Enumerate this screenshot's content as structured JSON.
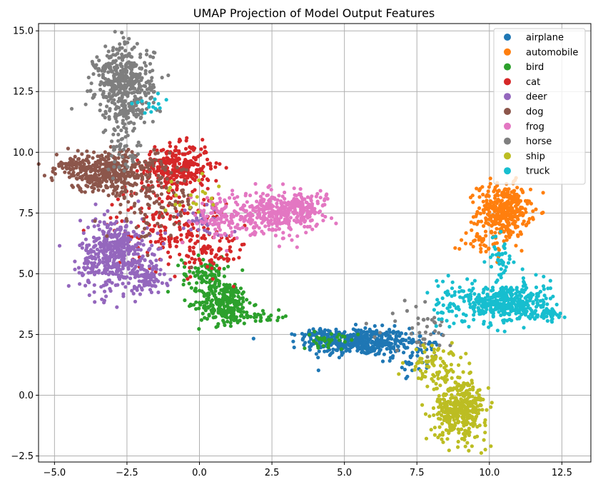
{
  "chart_data": {
    "type": "scatter",
    "title": "UMAP Projection of Model Output Features",
    "xlabel": "",
    "ylabel": "",
    "xlim": [
      -5.55,
      13.5
    ],
    "ylim": [
      -2.75,
      15.3
    ],
    "xticks": [
      -5.0,
      -2.5,
      0.0,
      2.5,
      5.0,
      7.5,
      10.0,
      12.5
    ],
    "xtick_labels": [
      "−5.0",
      "−2.5",
      "0.0",
      "2.5",
      "5.0",
      "7.5",
      "10.0",
      "12.5"
    ],
    "yticks": [
      -2.5,
      0.0,
      2.5,
      5.0,
      7.5,
      10.0,
      12.5,
      15.0
    ],
    "ytick_labels": [
      "−2.5",
      "0.0",
      "2.5",
      "5.0",
      "7.5",
      "10.0",
      "12.5",
      "15.0"
    ],
    "grid": true,
    "legend_position": "top-right",
    "series": [
      {
        "name": "airplane",
        "color": "#1f77b4",
        "clusters": [
          {
            "center": [
              5.5,
              2.2
            ],
            "spread": [
              0.9,
              0.28
            ],
            "count": 420
          },
          {
            "center": [
              7.5,
              1.7
            ],
            "spread": [
              0.4,
              0.4
            ],
            "count": 50
          },
          {
            "center": [
              4.2,
              2.5
            ],
            "spread": [
              0.4,
              0.12
            ],
            "count": 40
          }
        ]
      },
      {
        "name": "automobile",
        "color": "#ff7f0e",
        "clusters": [
          {
            "center": [
              10.5,
              7.6
            ],
            "spread": [
              0.45,
              0.55
            ],
            "count": 350
          },
          {
            "center": [
              9.8,
              6.4
            ],
            "spread": [
              0.4,
              0.35
            ],
            "count": 40
          }
        ]
      },
      {
        "name": "bird",
        "color": "#2ca02c",
        "clusters": [
          {
            "center": [
              0.9,
              3.8
            ],
            "spread": [
              0.45,
              0.45
            ],
            "count": 280
          },
          {
            "center": [
              0.2,
              5.0
            ],
            "spread": [
              0.4,
              0.35
            ],
            "count": 90
          },
          {
            "center": [
              2.3,
              3.2
            ],
            "spread": [
              0.4,
              0.12
            ],
            "count": 25
          },
          {
            "center": [
              4.5,
              2.3
            ],
            "spread": [
              0.5,
              0.15
            ],
            "count": 30
          }
        ]
      },
      {
        "name": "cat",
        "color": "#d62728",
        "clusters": [
          {
            "center": [
              -0.8,
              9.4
            ],
            "spread": [
              0.6,
              0.45
            ],
            "count": 300
          },
          {
            "center": [
              -1.0,
              7.0
            ],
            "spread": [
              1.0,
              0.9
            ],
            "count": 200
          },
          {
            "center": [
              0.4,
              5.8
            ],
            "spread": [
              0.6,
              0.5
            ],
            "count": 50
          }
        ]
      },
      {
        "name": "deer",
        "color": "#9467bd",
        "clusters": [
          {
            "center": [
              -2.9,
              5.8
            ],
            "spread": [
              0.6,
              0.75
            ],
            "count": 450
          },
          {
            "center": [
              -1.8,
              4.8
            ],
            "spread": [
              0.35,
              0.35
            ],
            "count": 80
          },
          {
            "center": [
              0.2,
              7.2
            ],
            "spread": [
              0.4,
              0.35
            ],
            "count": 40
          }
        ]
      },
      {
        "name": "dog",
        "color": "#8c564b",
        "clusters": [
          {
            "center": [
              -3.2,
              9.2
            ],
            "spread": [
              0.85,
              0.4
            ],
            "count": 380
          },
          {
            "center": [
              -4.4,
              9.5
            ],
            "spread": [
              0.3,
              0.12
            ],
            "count": 40
          },
          {
            "center": [
              -1.6,
              8.0
            ],
            "spread": [
              0.8,
              0.8
            ],
            "count": 120
          }
        ]
      },
      {
        "name": "frog",
        "color": "#e377c2",
        "clusters": [
          {
            "center": [
              2.6,
              7.5
            ],
            "spread": [
              0.75,
              0.4
            ],
            "count": 350
          },
          {
            "center": [
              3.8,
              7.8
            ],
            "spread": [
              0.35,
              0.35
            ],
            "count": 60
          },
          {
            "center": [
              0.6,
              7.4
            ],
            "spread": [
              0.5,
              0.45
            ],
            "count": 90
          }
        ]
      },
      {
        "name": "horse",
        "color": "#7f7f7f",
        "clusters": [
          {
            "center": [
              -2.6,
              12.9
            ],
            "spread": [
              0.5,
              0.75
            ],
            "count": 420
          },
          {
            "center": [
              -2.5,
              11.6
            ],
            "spread": [
              0.35,
              0.25
            ],
            "count": 60
          },
          {
            "center": [
              -2.6,
              10.2
            ],
            "spread": [
              0.3,
              0.5
            ],
            "count": 50
          },
          {
            "center": [
              7.6,
              2.8
            ],
            "spread": [
              0.6,
              0.6
            ],
            "count": 40
          }
        ]
      },
      {
        "name": "ship",
        "color": "#bcbd22",
        "clusters": [
          {
            "center": [
              9.0,
              -0.6
            ],
            "spread": [
              0.45,
              0.6
            ],
            "count": 380
          },
          {
            "center": [
              8.2,
              1.2
            ],
            "spread": [
              0.45,
              0.45
            ],
            "count": 90
          },
          {
            "center": [
              -0.4,
              8.2
            ],
            "spread": [
              0.5,
              0.4
            ],
            "count": 20
          }
        ]
      },
      {
        "name": "truck",
        "color": "#17becf",
        "clusters": [
          {
            "center": [
              10.6,
              3.8
            ],
            "spread": [
              0.75,
              0.42
            ],
            "count": 420
          },
          {
            "center": [
              12.0,
              3.3
            ],
            "spread": [
              0.3,
              0.12
            ],
            "count": 40
          },
          {
            "center": [
              10.4,
              5.6
            ],
            "spread": [
              0.2,
              0.5
            ],
            "count": 40
          },
          {
            "center": [
              8.6,
              3.8
            ],
            "spread": [
              0.3,
              0.5
            ],
            "count": 40
          },
          {
            "center": [
              -1.6,
              12.0
            ],
            "spread": [
              0.3,
              0.2
            ],
            "count": 15
          }
        ]
      }
    ]
  }
}
